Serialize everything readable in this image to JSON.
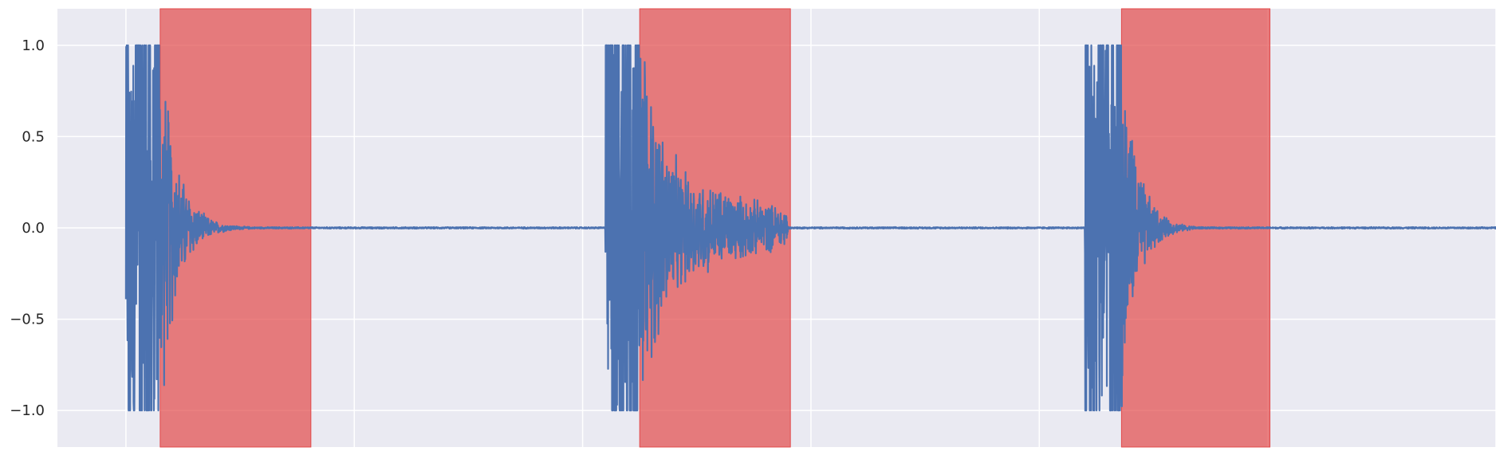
{
  "chart_data": {
    "type": "line",
    "title": "",
    "xlabel": "",
    "ylabel": "",
    "xlim": [
      -0.3,
      6.0
    ],
    "ylim": [
      -1.2,
      1.2
    ],
    "yticks": [
      -1.0,
      -0.5,
      0.0,
      0.5,
      1.0
    ],
    "ytick_labels": [
      "−1.0",
      "−0.5",
      "0.0",
      "0.5",
      "1.0"
    ],
    "xticks": [
      0,
      1,
      2,
      3,
      4,
      5,
      6
    ],
    "xtick_labels": [],
    "grid": true,
    "background_color": "#EAEAF2",
    "grid_color": "#FFFFFF",
    "series": [
      {
        "color": "#4C72B0",
        "bursts": [
          {
            "start": 0.0,
            "attack_end": 0.15,
            "decay_end": 0.55,
            "peak": 1.0,
            "tail": 0.06,
            "tail_end_amp": 0.005
          },
          {
            "start": 2.1,
            "attack_end": 2.25,
            "decay_end": 2.9,
            "peak": 1.07,
            "tail": 0.45,
            "tail_end_amp": 0.1
          },
          {
            "start": 4.2,
            "attack_end": 4.36,
            "decay_end": 4.73,
            "peak": 1.0,
            "tail": 0.05,
            "tail_end_amp": 0.004
          }
        ],
        "end": 6.0,
        "baseline": 0.0
      }
    ],
    "highlight_regions": [
      {
        "x_start": 0.15,
        "x_end": 0.81,
        "color": "#E24A4A",
        "alpha": 0.7
      },
      {
        "x_start": 2.25,
        "x_end": 2.91,
        "color": "#E24A4A",
        "alpha": 0.7
      },
      {
        "x_start": 4.36,
        "x_end": 5.01,
        "color": "#E24A4A",
        "alpha": 0.7
      }
    ]
  }
}
